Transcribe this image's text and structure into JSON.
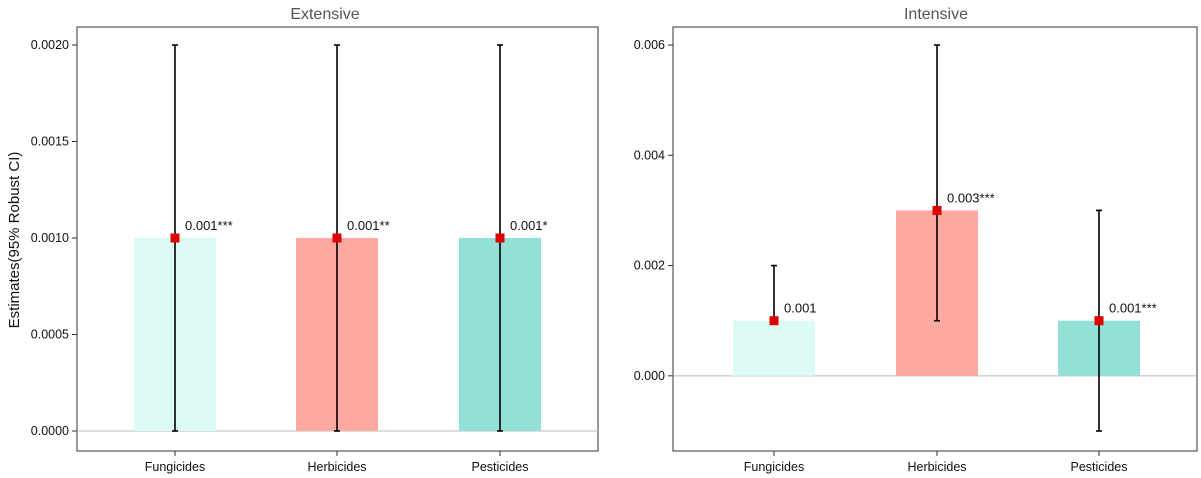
{
  "chart_data": [
    {
      "type": "bar",
      "title": "Extensive",
      "ylabel": "Estimates(95% Robust CI)",
      "categories": [
        "Fungicides",
        "Herbicides",
        "Pesticides"
      ],
      "values": [
        0.001,
        0.001,
        0.001
      ],
      "ci_low": [
        0.0,
        0.0,
        0.0
      ],
      "ci_high": [
        0.002,
        0.002,
        0.002
      ],
      "value_labels": [
        "0.001***",
        "0.001**",
        "0.001*"
      ],
      "bar_colors": [
        "#dcfbf5",
        "#fda8a0",
        "#93e0d7"
      ],
      "point_color": "#e00000",
      "ylim": [
        -0.0,
        0.002
      ],
      "yticks": [
        0.0,
        0.0005,
        0.001,
        0.0015,
        0.002
      ],
      "ytick_labels": [
        "0.0000",
        "0.0005",
        "0.0010",
        "0.0015",
        "0.0020"
      ],
      "grid": false
    },
    {
      "type": "bar",
      "title": "Intensive",
      "ylabel": "",
      "categories": [
        "Fungicides",
        "Herbicides",
        "Pesticides"
      ],
      "values": [
        0.001,
        0.003,
        0.001
      ],
      "ci_low": [
        0.001,
        0.001,
        -0.001
      ],
      "ci_high": [
        0.002,
        0.006,
        0.003
      ],
      "value_labels": [
        "0.001",
        "0.003***",
        "0.001***"
      ],
      "bar_colors": [
        "#dcfbf5",
        "#fda8a0",
        "#93e0d7"
      ],
      "point_color": "#e00000",
      "ylim": [
        -0.001,
        0.006
      ],
      "yticks": [
        0.0,
        0.002,
        0.004,
        0.006
      ],
      "ytick_labels": [
        "0.000",
        "0.002",
        "0.004",
        "0.006"
      ],
      "grid": false
    }
  ]
}
